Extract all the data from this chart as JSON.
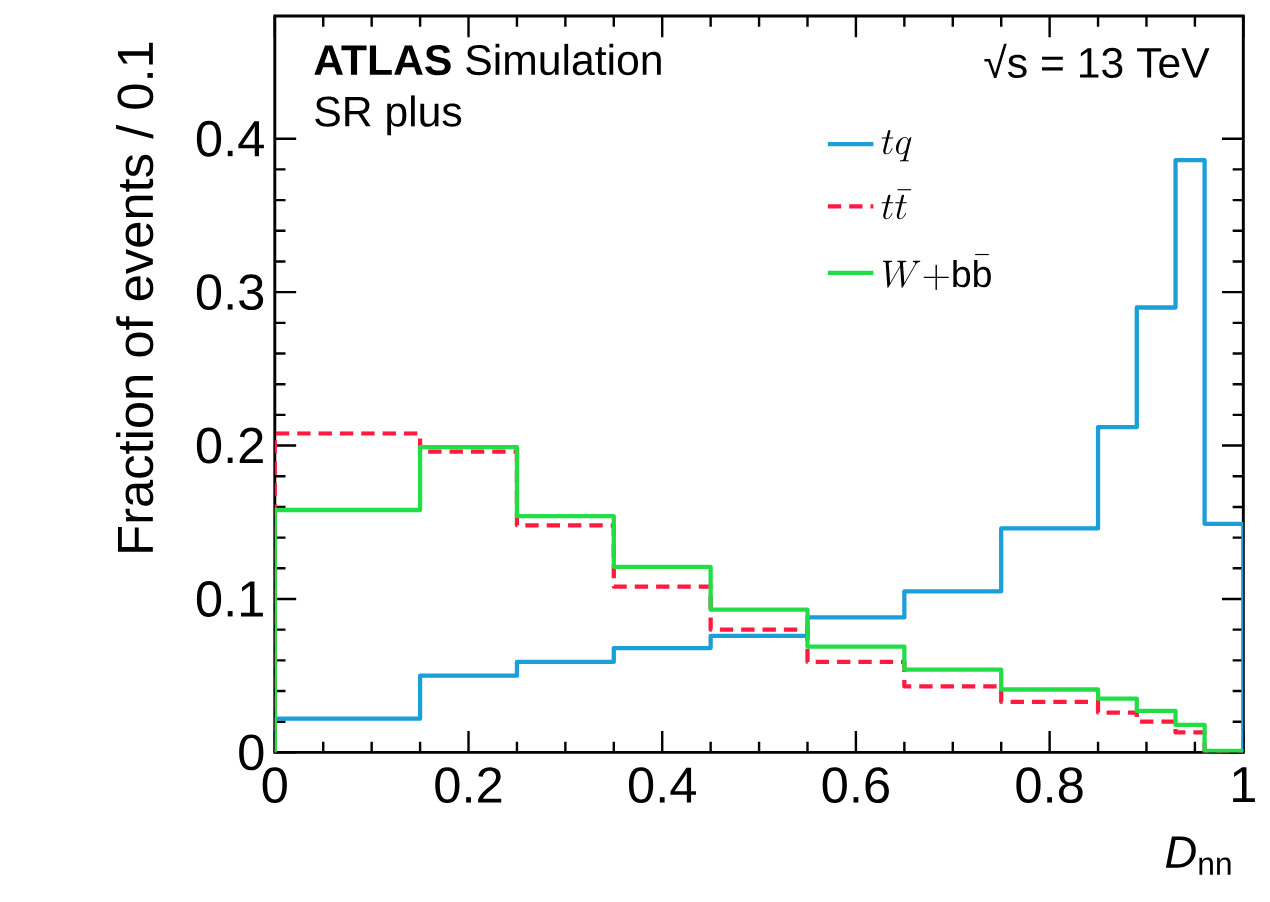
{
  "chart_data": {
    "type": "histogram",
    "title": "**ATLAS** Simulation",
    "subtitle": "SR plus",
    "annotations": [
      "√s = 13 TeV"
    ],
    "xlabel": "*D*$_{nn}$",
    "ylabel": "Fraction of events / 0.1",
    "bins": [
      0,
      0.15,
      0.25,
      0.35,
      0.45,
      0.55,
      0.65,
      0.75,
      0.85,
      0.89,
      0.93,
      0.96,
      1.0
    ],
    "series": [
      {
        "name": "tq",
        "color": "#1a9fd8",
        "line_style": "solid",
        "values": [
          0.022,
          0.05,
          0.059,
          0.068,
          0.076,
          0.088,
          0.105,
          0.146,
          0.212,
          0.29,
          0.386,
          0.149
        ]
      },
      {
        "name": "t\\bar{t}",
        "color": "#ff1a40",
        "line_style": "dashed",
        "values": [
          0.208,
          0.196,
          0.148,
          0.108,
          0.08,
          0.059,
          0.043,
          0.033,
          0.026,
          0.02,
          0.013,
          0.0
        ]
      },
      {
        "name": "W{+}\\mathrm{b}\\bar{\\mathrm{b}}",
        "color": "#22dd44",
        "line_style": "solid",
        "values": [
          0.158,
          0.199,
          0.154,
          0.121,
          0.093,
          0.069,
          0.054,
          0.041,
          0.035,
          0.027,
          0.018,
          0.001
        ]
      }
    ],
    "xlim": [
      0,
      1
    ],
    "ylim": [
      0,
      0.48
    ],
    "xticks": [
      0,
      0.2,
      0.4,
      0.6,
      0.8,
      1
    ],
    "yticks": [
      0,
      0.1,
      0.2,
      0.3,
      0.4
    ],
    "legend": "top right",
    "grid": false
  }
}
